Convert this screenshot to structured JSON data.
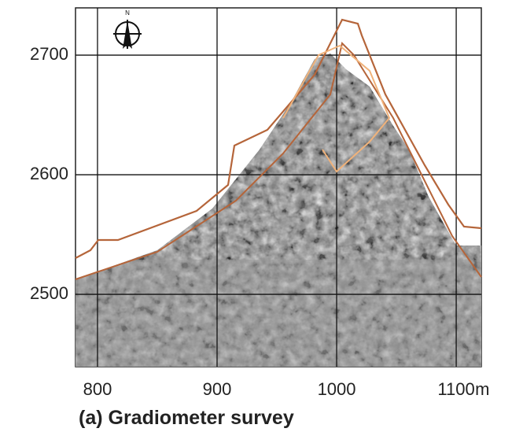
{
  "caption": "(a) Gradiometer survey",
  "compass": "N",
  "axes": {
    "xlim": [
      781.6,
      1121
    ],
    "ylim": [
      2439.5,
      2739.5
    ],
    "xticks": [
      800,
      900,
      1000,
      1100
    ],
    "x_unit": "m",
    "yticks": [
      2500,
      2600,
      2700
    ]
  }
}
